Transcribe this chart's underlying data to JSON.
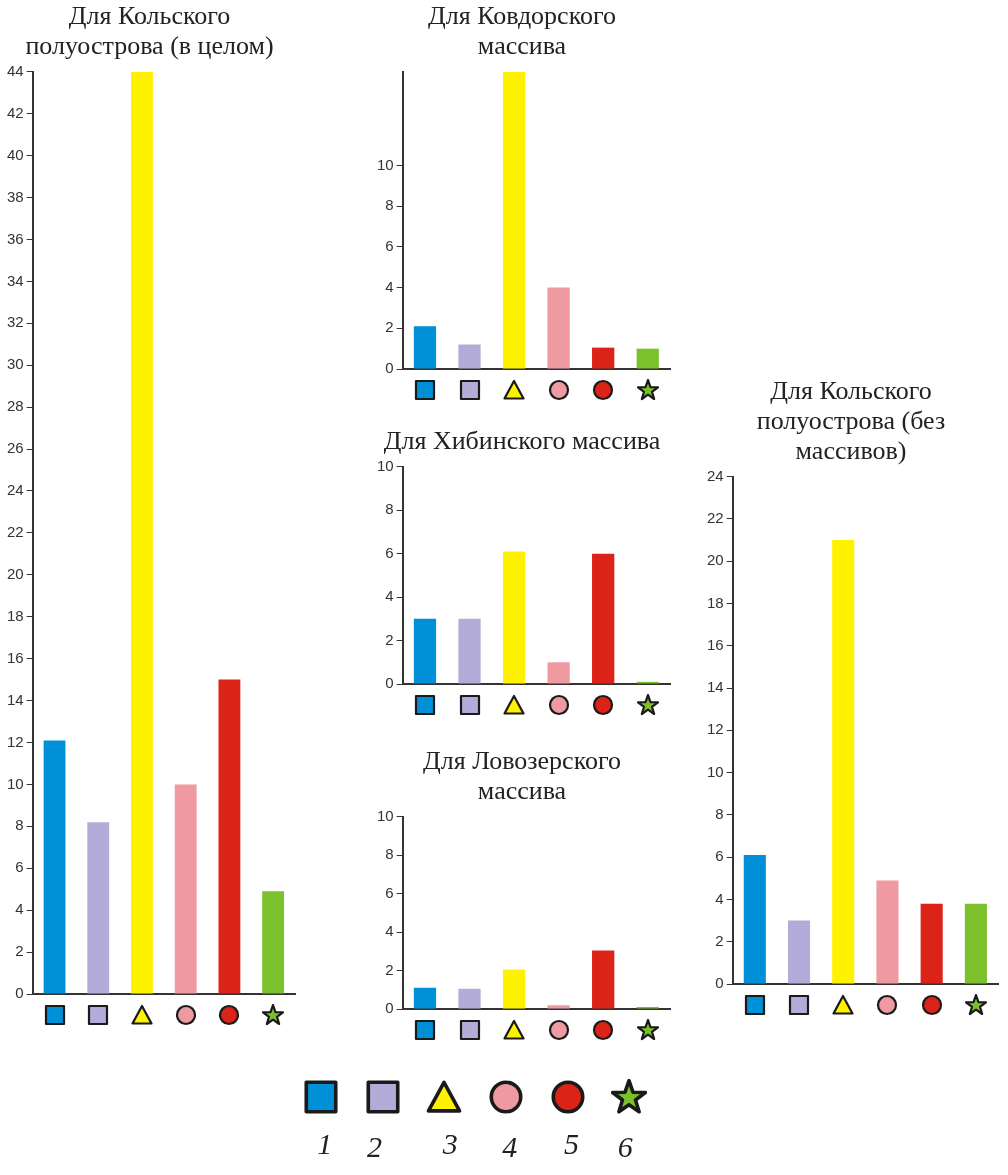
{
  "chart_data": [
    {
      "type": "bar",
      "title": "Для Кольского полуострова (в целом)",
      "annotations": [
        "1",
        "2",
        "3",
        "4",
        "5",
        "6"
      ],
      "categories": [
        null,
        null,
        null,
        null,
        null,
        null
      ],
      "values": [
        12.1,
        8.2,
        44,
        10,
        15,
        4.9
      ],
      "colors": [
        "#0090d8",
        "#b4acd8",
        "#fff200",
        "#ee9aa0",
        "#dc2318",
        "#7cc12c"
      ],
      "ylim": [
        0,
        44
      ],
      "yticks": [
        0,
        2,
        4,
        6,
        8,
        10,
        12,
        14,
        16,
        18,
        20,
        22,
        24,
        26,
        28,
        30,
        32,
        34,
        36,
        38,
        40,
        42,
        44
      ]
    },
    {
      "type": "bar",
      "title": "Для Ковдорского массива",
      "categories": [
        null,
        null,
        null,
        null,
        null,
        null
      ],
      "values": [
        2.1,
        1.2,
        14.6,
        4,
        1.05,
        1
      ],
      "colors": [
        "#0090d8",
        "#b4acd8",
        "#fff200",
        "#ee9aa0",
        "#dc2318",
        "#7cc12c"
      ],
      "ylim": [
        0,
        14.6
      ],
      "yticks": [
        0,
        2,
        4,
        6,
        8,
        10
      ]
    },
    {
      "type": "bar",
      "title": "Для Хибинского массива",
      "categories": [
        null,
        null,
        null,
        null,
        null,
        null
      ],
      "values": [
        3,
        3,
        6.1,
        1,
        6,
        0.1
      ],
      "colors": [
        "#0090d8",
        "#b4acd8",
        "#fff200",
        "#ee9aa0",
        "#dc2318",
        "#7cc12c"
      ],
      "ylim": [
        0,
        10
      ],
      "yticks": [
        0,
        2,
        4,
        6,
        8,
        10
      ]
    },
    {
      "type": "bar",
      "title": "Для Ловозерского массива",
      "categories": [
        null,
        null,
        null,
        null,
        null,
        null
      ],
      "values": [
        1.1,
        1.05,
        2.05,
        0.2,
        3.05,
        0.1
      ],
      "colors": [
        "#0090d8",
        "#b4acd8",
        "#fff200",
        "#ee9aa0",
        "#dc2318",
        "#7cc12c"
      ],
      "ylim": [
        0,
        10
      ],
      "yticks": [
        0,
        2,
        4,
        6,
        8,
        10
      ]
    },
    {
      "type": "bar",
      "title": "Для Кольского полуострова (без массивов)",
      "categories": [
        null,
        null,
        null,
        null,
        null,
        null
      ],
      "values": [
        6.1,
        3,
        21,
        4.9,
        3.8,
        3.8
      ],
      "colors": [
        "#0090d8",
        "#b4acd8",
        "#fff200",
        "#ee9aa0",
        "#dc2318",
        "#7cc12c"
      ],
      "ylim": [
        0,
        24
      ],
      "yticks": [
        0,
        2,
        4,
        6,
        8,
        10,
        12,
        14,
        16,
        18,
        20,
        22,
        24
      ]
    }
  ]
}
